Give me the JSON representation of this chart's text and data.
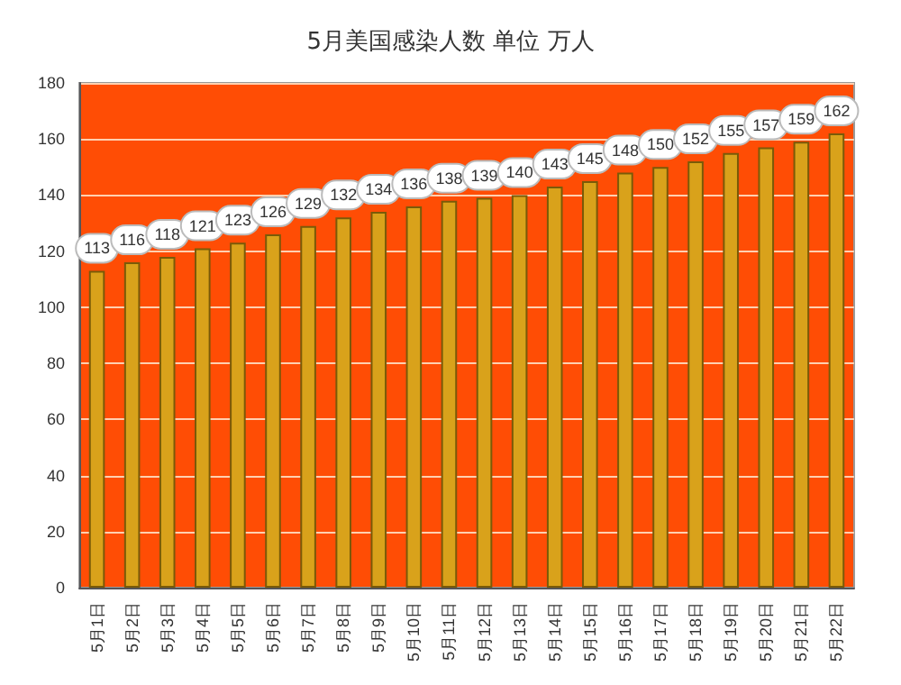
{
  "chart_data": {
    "type": "bar",
    "title": "5月美国感染人数 单位 万人",
    "categories": [
      "5月1日",
      "5月2日",
      "5月3日",
      "5月4日",
      "5月5日",
      "5月6日",
      "5月7日",
      "5月8日",
      "5月9日",
      "5月10日",
      "5月11日",
      "5月12日",
      "5月13日",
      "5月14日",
      "5月15日",
      "5月16日",
      "5月17日",
      "5月18日",
      "5月19日",
      "5月20日",
      "5月21日",
      "5月22日"
    ],
    "values": [
      113,
      116,
      118,
      121,
      123,
      126,
      129,
      132,
      134,
      136,
      138,
      139,
      140,
      143,
      145,
      148,
      150,
      152,
      155,
      157,
      159,
      162
    ],
    "color": "#d9a21b",
    "ylim": [
      0,
      180
    ],
    "yticks": [
      0,
      20,
      40,
      60,
      80,
      100,
      120,
      140,
      160,
      180
    ],
    "grid": "y",
    "data_labels": true
  }
}
